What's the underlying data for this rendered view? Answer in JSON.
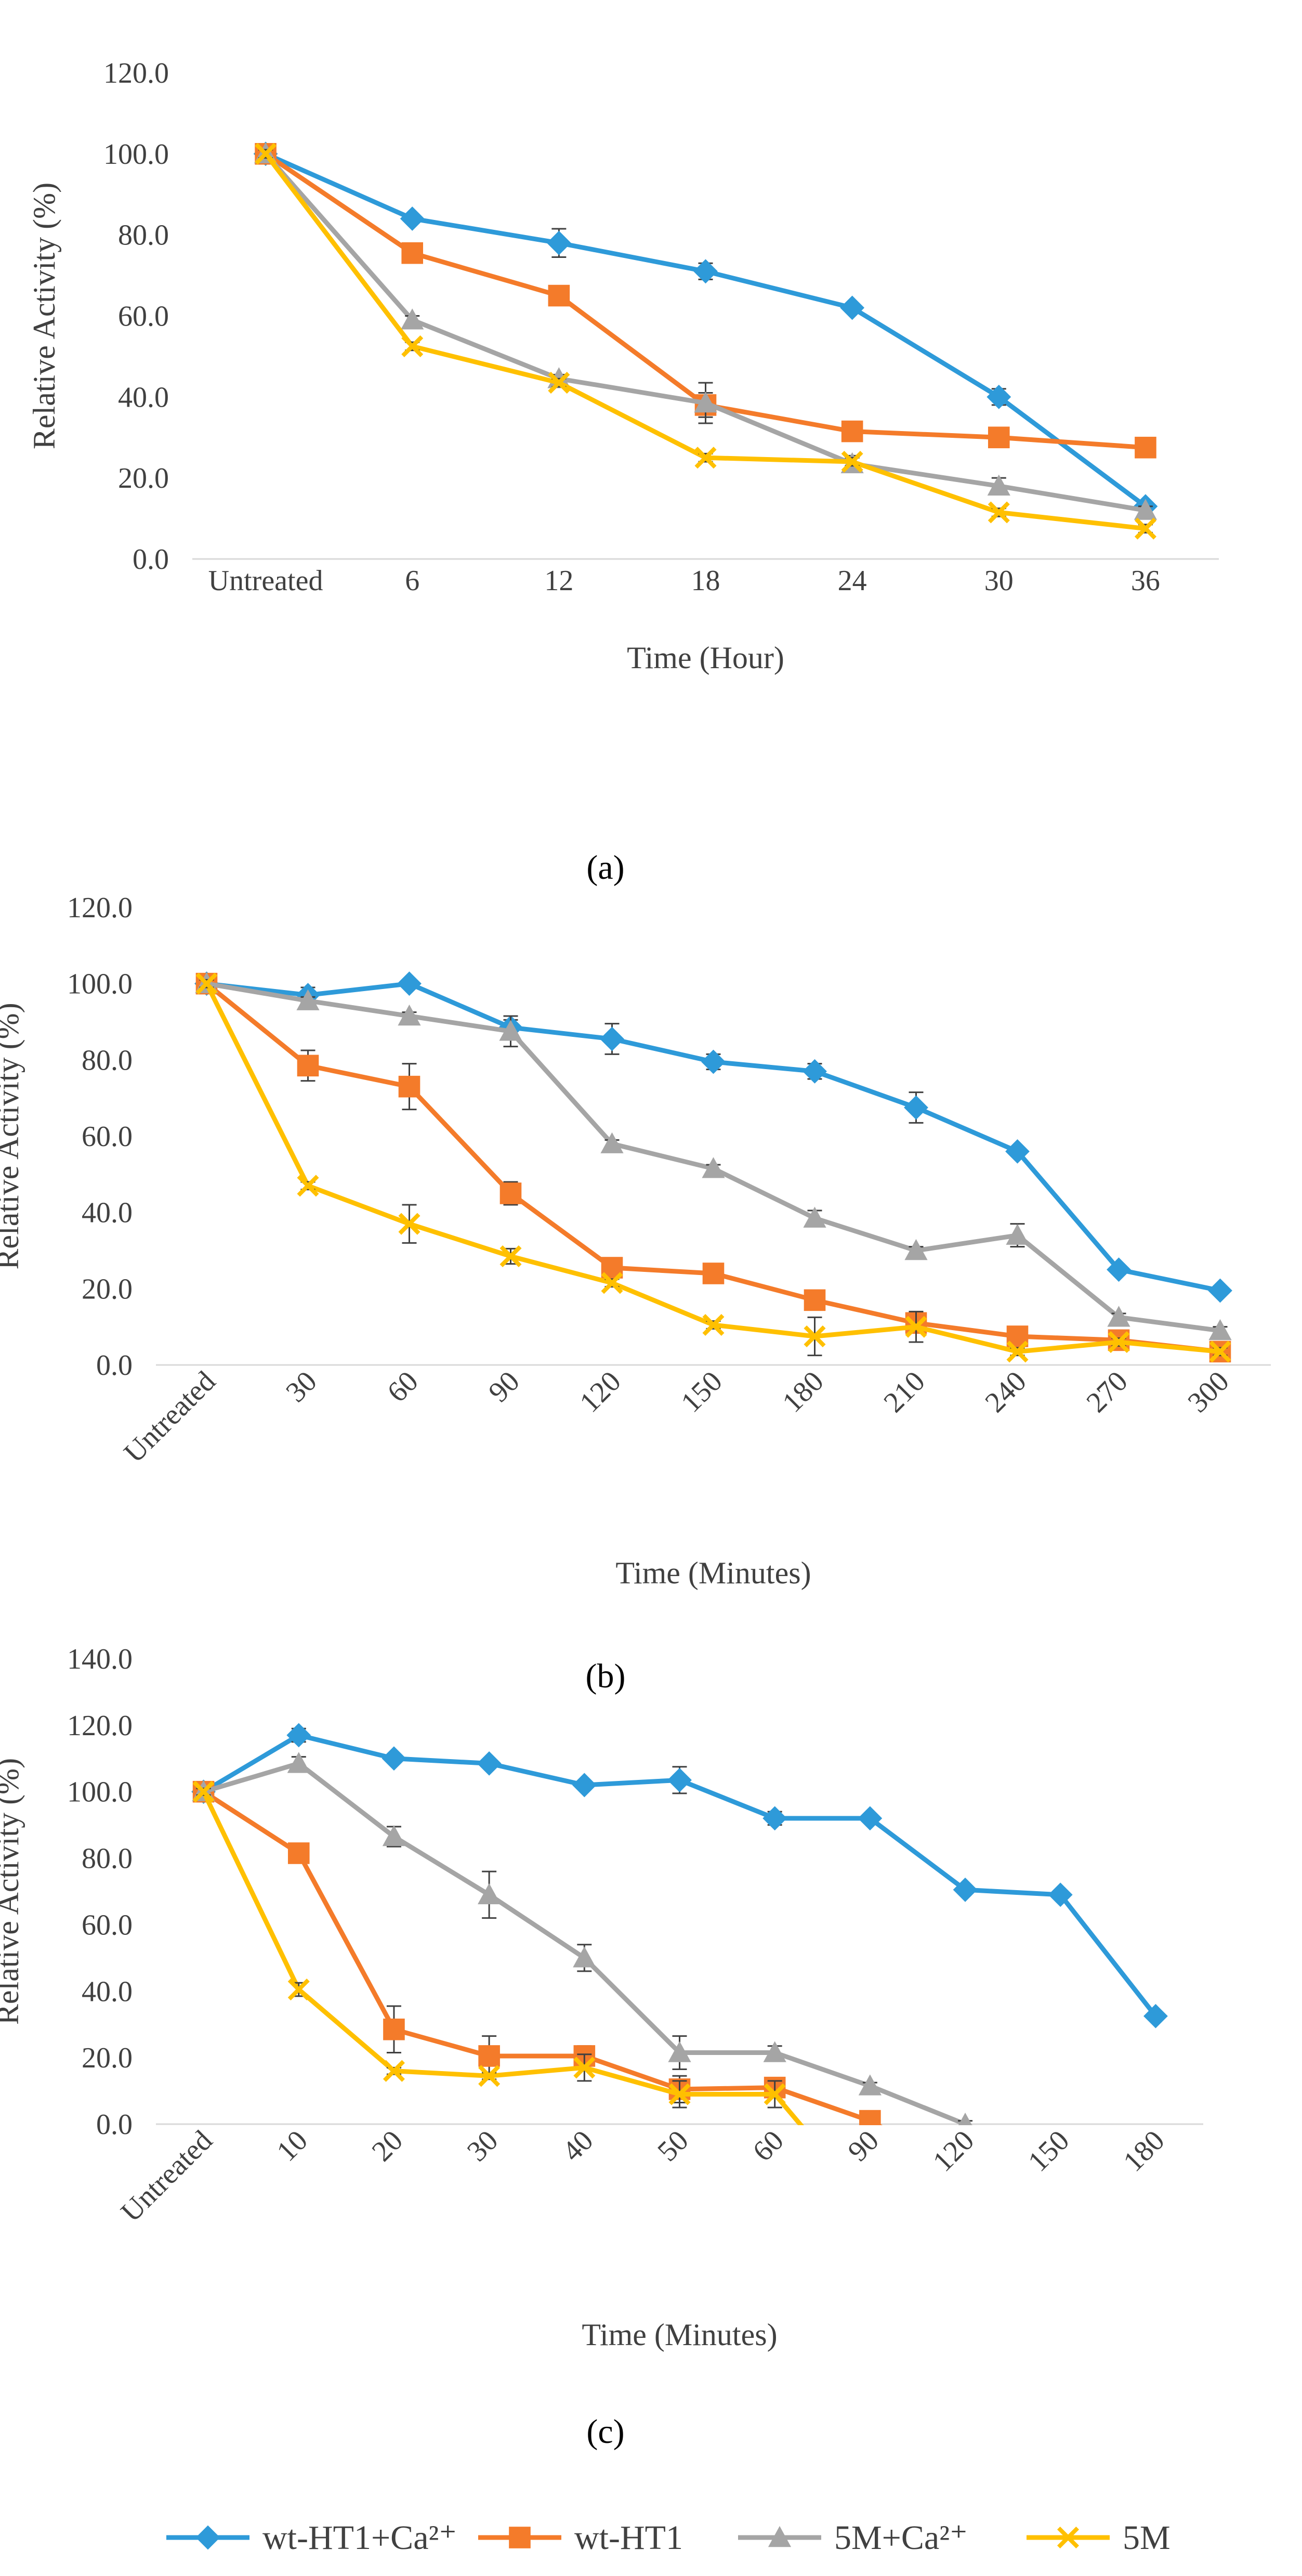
{
  "chart_data": [
    {
      "type": "line",
      "caption": "(a)",
      "xlabel": "Time (Hour)",
      "ylabel": "Relative Activity (%)",
      "ylim": [
        0,
        120
      ],
      "yticks": [
        "0.0",
        "20.0",
        "40.0",
        "60.0",
        "80.0",
        "100.0",
        "120.0"
      ],
      "categories": [
        "Untreated",
        "6",
        "12",
        "18",
        "24",
        "30",
        "36"
      ],
      "series": [
        {
          "name": "wt-HT1+Ca²⁺",
          "values": [
            100,
            84,
            78,
            71,
            62,
            40,
            13
          ],
          "errors": [
            2,
            1,
            3.5,
            2,
            1,
            2,
            1
          ]
        },
        {
          "name": "wt-HT1",
          "values": [
            100,
            75.5,
            65,
            38,
            31.5,
            30,
            27.5
          ],
          "errors": [
            2,
            1,
            1,
            3,
            2,
            1,
            1
          ]
        },
        {
          "name": "5M+Ca²⁺",
          "values": [
            100,
            59,
            44.5,
            38.5,
            23.5,
            18,
            12
          ],
          "errors": [
            1,
            1,
            1,
            5,
            2,
            2,
            1
          ]
        },
        {
          "name": "5M",
          "values": [
            100,
            52.5,
            43.5,
            25,
            24,
            11.5,
            7.5
          ],
          "errors": [
            1,
            1,
            1,
            1,
            1,
            1,
            1
          ]
        }
      ]
    },
    {
      "type": "line",
      "caption": "(b)",
      "xlabel": "Time (Minutes)",
      "ylabel": "Relative Activity (%)",
      "ylim": [
        0,
        120
      ],
      "yticks": [
        "0.0",
        "20.0",
        "40.0",
        "60.0",
        "80.0",
        "100.0",
        "120.0"
      ],
      "categories": [
        "Untreated",
        "30",
        "60",
        "90",
        "120",
        "150",
        "180",
        "210",
        "240",
        "270",
        "300"
      ],
      "series": [
        {
          "name": "wt-HT1+Ca²⁺",
          "values": [
            100,
            97,
            100,
            88.5,
            85.5,
            79.5,
            77,
            67.5,
            56,
            25,
            19.5
          ],
          "errors": [
            1,
            2,
            1,
            2,
            4,
            2,
            2,
            4,
            1,
            1,
            1
          ]
        },
        {
          "name": "wt-HT1",
          "values": [
            100,
            78.5,
            73,
            45,
            25.5,
            24,
            17,
            11,
            7.5,
            6.5,
            3.5
          ],
          "errors": [
            1,
            4,
            6,
            3,
            2,
            1,
            1,
            2,
            1,
            1,
            1
          ]
        },
        {
          "name": "5M+Ca²⁺",
          "values": [
            100,
            95.5,
            91.5,
            87.5,
            58,
            51.5,
            38.5,
            30,
            34,
            12.5,
            9
          ],
          "errors": [
            1,
            1,
            1,
            4,
            1,
            1,
            2,
            1,
            3,
            1,
            1
          ]
        },
        {
          "name": "5M",
          "values": [
            100,
            47,
            37,
            28.5,
            21.5,
            10.5,
            7.5,
            10,
            3.5,
            6,
            3.5
          ],
          "errors": [
            1,
            1,
            5,
            2,
            1,
            1,
            5,
            4,
            1,
            1,
            1
          ]
        }
      ]
    },
    {
      "type": "line",
      "caption": "(c)",
      "xlabel": "Time (Minutes)",
      "ylabel": "Relative Activity (%)",
      "ylim": [
        0,
        140
      ],
      "yticks": [
        "0.0",
        "20.0",
        "40.0",
        "60.0",
        "80.0",
        "100.0",
        "120.0",
        "140.0"
      ],
      "categories": [
        "Untreated",
        "10",
        "20",
        "30",
        "40",
        "50",
        "60",
        "90",
        "120",
        "150",
        "180"
      ],
      "series": [
        {
          "name": "wt-HT1+Ca²⁺",
          "values": [
            100,
            117,
            110,
            108.5,
            102,
            103.5,
            92,
            92,
            70.5,
            69,
            32.5
          ],
          "errors": [
            1,
            2,
            1,
            1,
            1,
            4,
            2,
            1,
            1,
            1,
            1
          ]
        },
        {
          "name": "wt-HT1",
          "values": [
            100,
            81.5,
            28.5,
            20.5,
            20.5,
            10.5,
            11,
            1,
            null,
            null,
            null
          ],
          "errors": [
            1,
            1,
            7,
            6,
            3,
            4,
            3,
            1,
            0,
            0,
            0
          ]
        },
        {
          "name": "5M+Ca²⁺",
          "values": [
            100,
            108.5,
            86.5,
            69,
            50,
            21.5,
            21.5,
            11.5,
            0,
            null,
            null
          ],
          "errors": [
            1,
            2,
            3,
            7,
            4,
            5,
            2,
            1,
            1,
            0,
            0
          ]
        },
        {
          "name": "5M",
          "values": [
            100,
            40.5,
            16,
            14.5,
            17,
            9,
            9,
            null,
            null,
            null,
            null
          ],
          "errors": [
            1,
            2,
            1,
            1,
            4,
            4,
            4,
            0,
            0,
            0,
            0
          ]
        }
      ]
    }
  ],
  "legend": [
    {
      "label": "wt-HT1+Ca²⁺",
      "marker": "diamond",
      "color": "#2E9AD9"
    },
    {
      "label": "wt-HT1",
      "marker": "square",
      "color": "#F47B2A"
    },
    {
      "label": "5M+Ca²⁺",
      "marker": "triangle",
      "color": "#A5A5A5"
    },
    {
      "label": "5M",
      "marker": "x",
      "color": "#FFC000"
    }
  ]
}
